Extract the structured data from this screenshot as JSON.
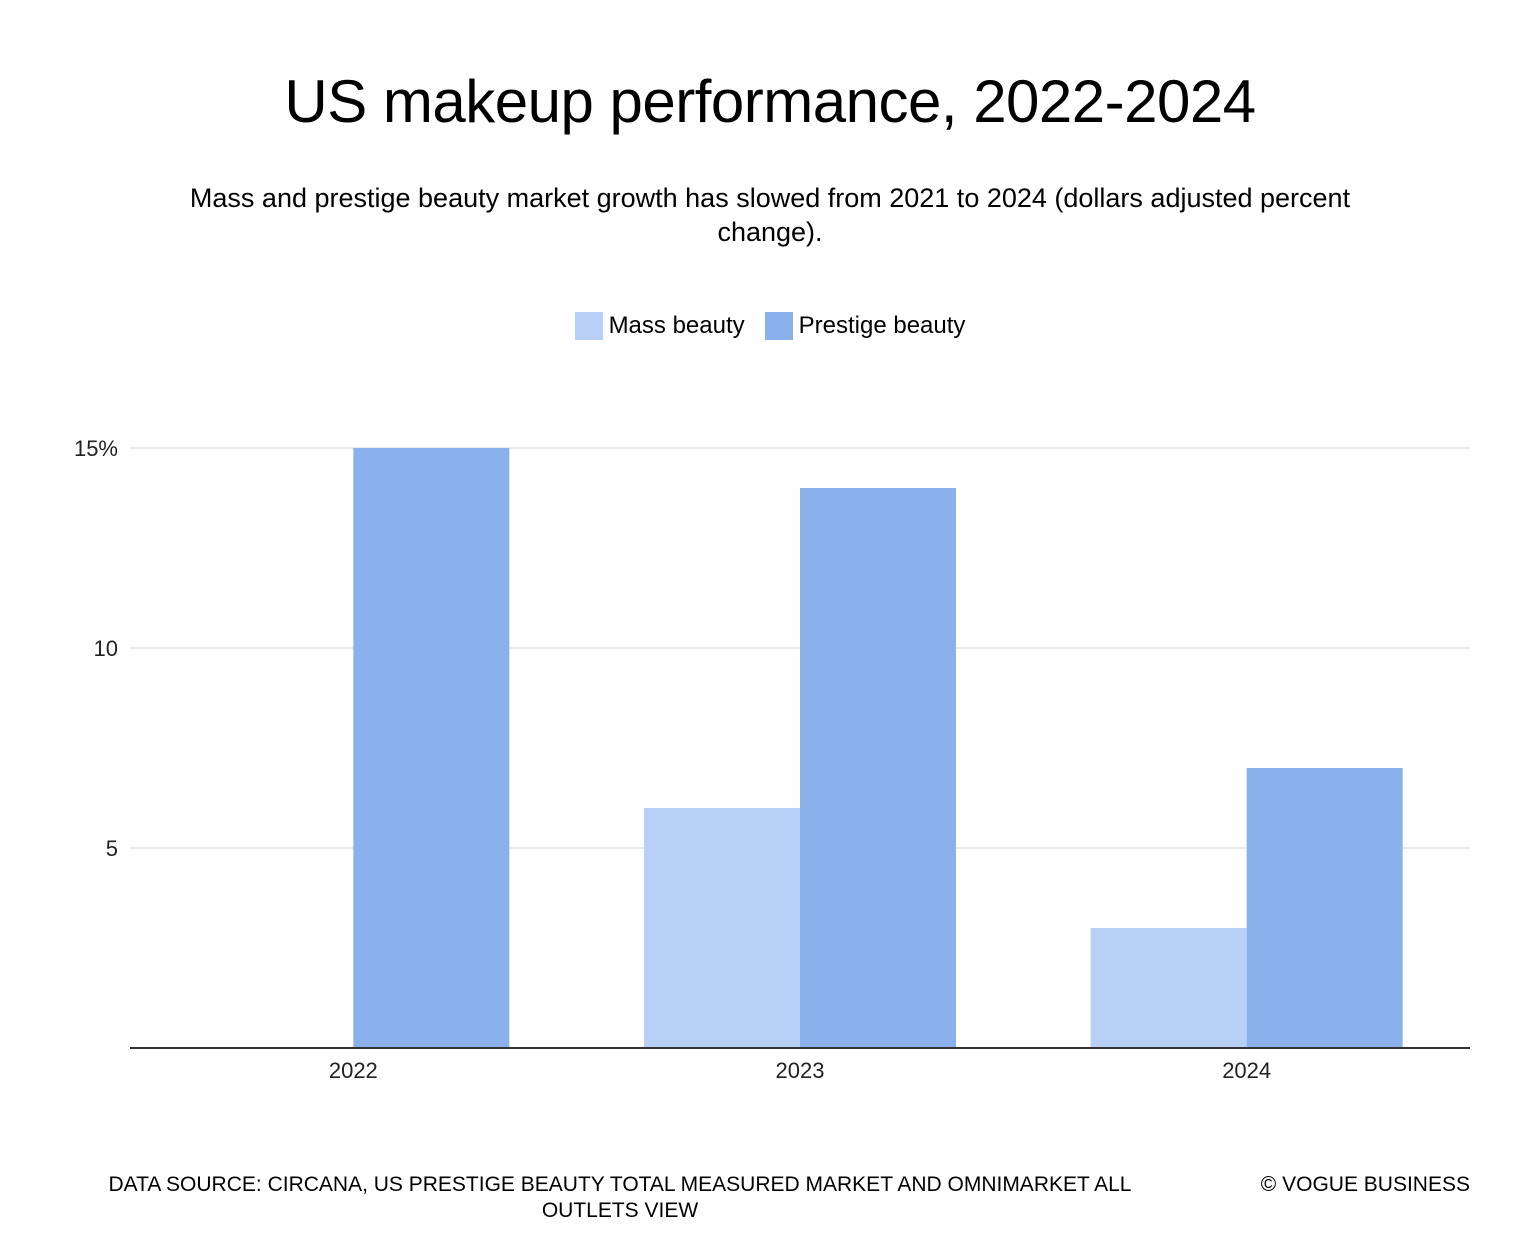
{
  "chart_data": {
    "type": "bar",
    "title": "US makeup performance, 2022-2024",
    "subtitle": "Mass and prestige beauty market growth has slowed from 2021 to 2024 (dollars adjusted percent change).",
    "categories": [
      "2022",
      "2023",
      "2024"
    ],
    "series": [
      {
        "name": "Mass beauty",
        "values": [
          0,
          6,
          3
        ],
        "color": "#b8d0f5"
      },
      {
        "name": "Prestige beauty",
        "values": [
          15,
          14,
          7
        ],
        "color": "#8ab1ec"
      }
    ],
    "ylim": [
      0,
      15
    ],
    "yticks": [
      5,
      10,
      15
    ],
    "ytick_labels": [
      "5",
      "10",
      "15%"
    ],
    "grid": true,
    "legend_position": "top-center",
    "xlabel": "",
    "ylabel": ""
  },
  "footer": {
    "source": "DATA SOURCE: CIRCANA, US PRESTIGE BEAUTY TOTAL MEASURED MARKET AND OMNIMARKET ALL OUTLETS VIEW",
    "credit": "© VOGUE BUSINESS"
  }
}
